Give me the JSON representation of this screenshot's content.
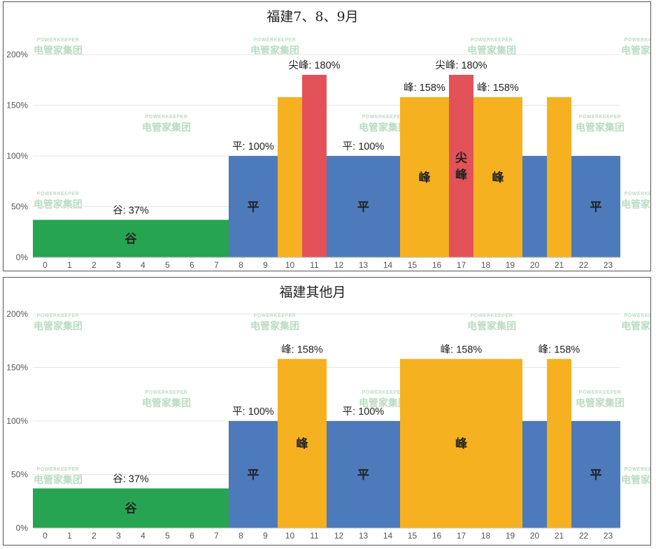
{
  "watermark": {
    "brand": "POWERKEEPER",
    "name": "电管家集团"
  },
  "colors": {
    "谷": "#27a451",
    "平": "#4d7abb",
    "峰": "#f5b120",
    "尖峰": "#e25258",
    "grid": "#e6e6e6",
    "axis": "#bfbfbf"
  },
  "chart_data": [
    {
      "type": "bar",
      "title": "福建7、8、9月",
      "xlabel": "",
      "ylabel": "",
      "categories": [
        "0",
        "1",
        "2",
        "3",
        "4",
        "5",
        "6",
        "7",
        "8",
        "9",
        "10",
        "11",
        "12",
        "13",
        "14",
        "15",
        "16",
        "17",
        "18",
        "19",
        "20",
        "21",
        "22",
        "23"
      ],
      "yticks": [
        "0%",
        "50%",
        "100%",
        "150%",
        "200%"
      ],
      "ylim": [
        0,
        200
      ],
      "series": [
        {
          "name": "period",
          "values": [
            "谷",
            "谷",
            "谷",
            "谷",
            "谷",
            "谷",
            "谷",
            "谷",
            "平",
            "平",
            "峰",
            "尖峰",
            "平",
            "平",
            "平",
            "峰",
            "峰",
            "尖峰",
            "峰",
            "峰",
            "平",
            "峰",
            "平",
            "平"
          ]
        }
      ],
      "values": [
        37,
        37,
        37,
        37,
        37,
        37,
        37,
        37,
        100,
        100,
        158,
        180,
        100,
        100,
        100,
        158,
        158,
        180,
        158,
        158,
        100,
        158,
        100,
        100
      ],
      "segments": [
        {
          "start": 0,
          "end": 7,
          "period": "谷",
          "value": 37,
          "label": "谷: 37%",
          "inner": [
            "谷"
          ]
        },
        {
          "start": 8,
          "end": 9,
          "period": "平",
          "value": 100,
          "label": "平: 100%",
          "inner": [
            "平"
          ]
        },
        {
          "start": 10,
          "end": 10,
          "period": "峰",
          "value": 158,
          "label": "",
          "inner": []
        },
        {
          "start": 11,
          "end": 11,
          "period": "尖峰",
          "value": 180,
          "label": "尖峰: 180%",
          "inner": []
        },
        {
          "start": 12,
          "end": 14,
          "period": "平",
          "value": 100,
          "label": "平: 100%",
          "inner": [
            "平"
          ]
        },
        {
          "start": 15,
          "end": 16,
          "period": "峰",
          "value": 158,
          "label": "峰: 158%",
          "inner": [
            "峰"
          ]
        },
        {
          "start": 17,
          "end": 17,
          "period": "尖峰",
          "value": 180,
          "label": "尖峰: 180%",
          "inner": [
            "尖",
            "峰"
          ]
        },
        {
          "start": 18,
          "end": 19,
          "period": "峰",
          "value": 158,
          "label": "峰: 158%",
          "inner": [
            "峰"
          ]
        },
        {
          "start": 20,
          "end": 20,
          "period": "平",
          "value": 100,
          "label": "",
          "inner": []
        },
        {
          "start": 21,
          "end": 21,
          "period": "峰",
          "value": 158,
          "label": "",
          "inner": []
        },
        {
          "start": 22,
          "end": 23,
          "period": "平",
          "value": 100,
          "label": "",
          "inner": [
            "平"
          ]
        }
      ]
    },
    {
      "type": "bar",
      "title": "福建其他月",
      "xlabel": "",
      "ylabel": "",
      "categories": [
        "0",
        "1",
        "2",
        "3",
        "4",
        "5",
        "6",
        "7",
        "8",
        "9",
        "10",
        "11",
        "12",
        "13",
        "14",
        "15",
        "16",
        "17",
        "18",
        "19",
        "20",
        "21",
        "22",
        "23"
      ],
      "yticks": [
        "0%",
        "50%",
        "100%",
        "150%",
        "200%"
      ],
      "ylim": [
        0,
        200
      ],
      "series": [
        {
          "name": "period",
          "values": [
            "谷",
            "谷",
            "谷",
            "谷",
            "谷",
            "谷",
            "谷",
            "谷",
            "平",
            "平",
            "峰",
            "峰",
            "平",
            "平",
            "平",
            "峰",
            "峰",
            "峰",
            "峰",
            "峰",
            "平",
            "峰",
            "平",
            "平"
          ]
        }
      ],
      "values": [
        37,
        37,
        37,
        37,
        37,
        37,
        37,
        37,
        100,
        100,
        158,
        158,
        100,
        100,
        100,
        158,
        158,
        158,
        158,
        158,
        100,
        158,
        100,
        100
      ],
      "segments": [
        {
          "start": 0,
          "end": 7,
          "period": "谷",
          "value": 37,
          "label": "谷: 37%",
          "inner": [
            "谷"
          ]
        },
        {
          "start": 8,
          "end": 9,
          "period": "平",
          "value": 100,
          "label": "平: 100%",
          "inner": [
            "平"
          ]
        },
        {
          "start": 10,
          "end": 11,
          "period": "峰",
          "value": 158,
          "label": "峰: 158%",
          "inner": [
            "峰"
          ]
        },
        {
          "start": 12,
          "end": 14,
          "period": "平",
          "value": 100,
          "label": "平: 100%",
          "inner": [
            "平"
          ]
        },
        {
          "start": 15,
          "end": 19,
          "period": "峰",
          "value": 158,
          "label": "峰: 158%",
          "inner": [
            "峰"
          ]
        },
        {
          "start": 20,
          "end": 20,
          "period": "平",
          "value": 100,
          "label": "",
          "inner": []
        },
        {
          "start": 21,
          "end": 21,
          "period": "峰",
          "value": 158,
          "label": "峰: 158%",
          "inner": []
        },
        {
          "start": 22,
          "end": 23,
          "period": "平",
          "value": 100,
          "label": "",
          "inner": [
            "平"
          ]
        }
      ]
    }
  ]
}
